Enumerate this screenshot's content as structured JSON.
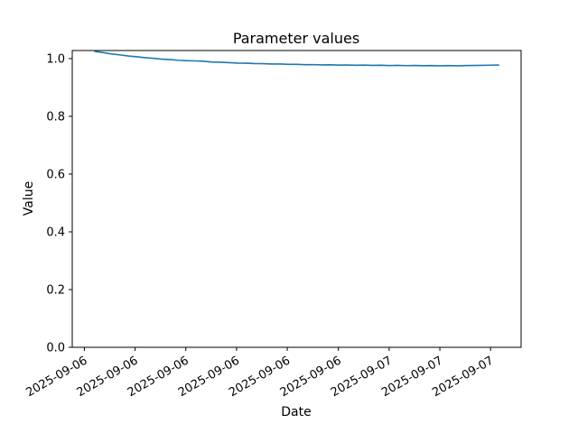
{
  "chart_data": {
    "type": "line",
    "title": "Parameter values",
    "xlabel": "Date",
    "ylabel": "Value",
    "ylim": [
      0.0,
      1.028
    ],
    "yticks": [
      0.0,
      0.2,
      0.4,
      0.6,
      0.8,
      1.0
    ],
    "ytick_labels": [
      "0.0",
      "0.2",
      "0.4",
      "0.6",
      "0.8",
      "1.0"
    ],
    "xtick_positions": [
      0.027,
      0.14,
      0.253,
      0.366,
      0.479,
      0.593,
      0.706,
      0.819,
      0.932
    ],
    "xtick_labels": [
      "2025-09-06",
      "2025-09-06",
      "2025-09-06",
      "2025-09-06",
      "2025-09-06",
      "2025-09-06",
      "2025-09-07",
      "2025-09-07",
      "2025-09-07"
    ],
    "xtick_rotation_deg": 30,
    "grid": false,
    "legend": "none",
    "line_color": "#1f77b4",
    "spine_color": "#000000",
    "series": [
      {
        "name": "parameter-values",
        "x": [
          0.05,
          0.0688,
          0.0875,
          0.1063,
          0.125,
          0.1438,
          0.1625,
          0.1813,
          0.2,
          0.2188,
          0.2375,
          0.2563,
          0.275,
          0.2938,
          0.3125,
          0.3313,
          0.35,
          0.3688,
          0.3875,
          0.4063,
          0.425,
          0.4438,
          0.4625,
          0.4813,
          0.5,
          0.5188,
          0.5375,
          0.5563,
          0.575,
          0.5938,
          0.6125,
          0.6313,
          0.65,
          0.6688,
          0.6875,
          0.7063,
          0.725,
          0.7438,
          0.7625,
          0.7813,
          0.8,
          0.8188,
          0.8375,
          0.8563,
          0.875,
          0.8938,
          0.9125,
          0.9313,
          0.95
        ],
        "y": [
          1.025,
          1.0207,
          1.0162,
          1.0128,
          1.009,
          1.0063,
          1.0031,
          1.0009,
          0.9981,
          0.9965,
          0.994,
          0.9928,
          0.9921,
          0.9907,
          0.988,
          0.9872,
          0.9861,
          0.9846,
          0.9841,
          0.9828,
          0.9825,
          0.9813,
          0.9812,
          0.98,
          0.9801,
          0.979,
          0.9792,
          0.9782,
          0.9785,
          0.9775,
          0.9778,
          0.977,
          0.9774,
          0.9765,
          0.977,
          0.976,
          0.9766,
          0.9757,
          0.9763,
          0.9755,
          0.976,
          0.9752,
          0.9758,
          0.975,
          0.9758,
          0.9763,
          0.9768,
          0.9772,
          0.9778
        ]
      }
    ]
  }
}
